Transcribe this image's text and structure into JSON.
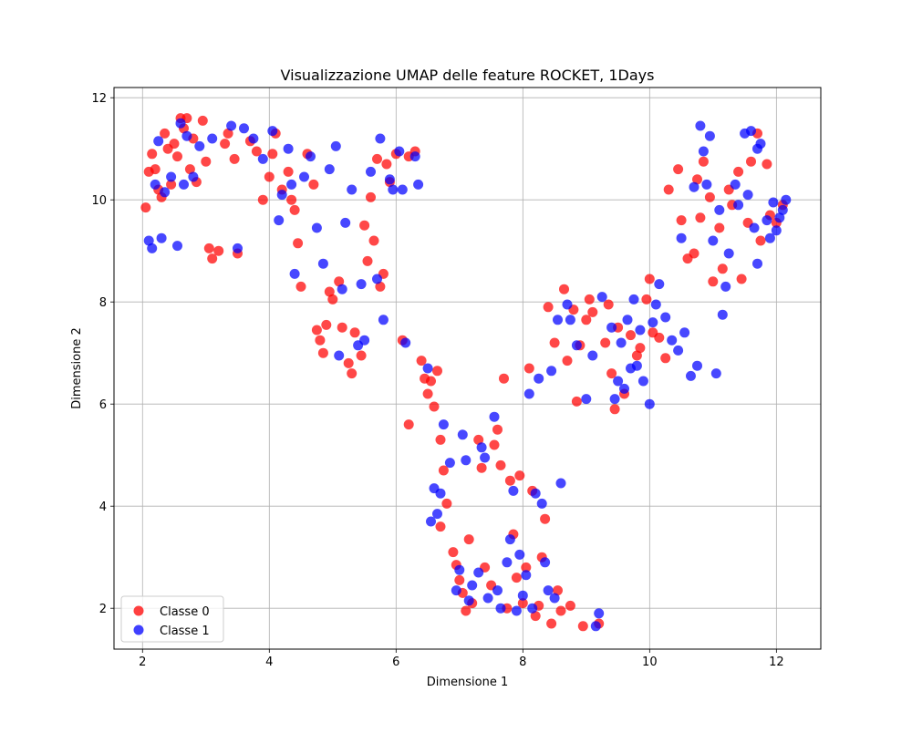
{
  "chart_data": {
    "type": "scatter",
    "title": "Visualizzazione UMAP delle feature ROCKET, 1Days",
    "xlabel": "Dimensione 1",
    "ylabel": "Dimensione 2",
    "xlim": [
      1.55,
      12.7
    ],
    "ylim": [
      1.2,
      12.2
    ],
    "xticks": [
      2,
      4,
      6,
      8,
      10,
      12
    ],
    "yticks": [
      2,
      4,
      6,
      8,
      10,
      12
    ],
    "grid": true,
    "legend_position": "lower left",
    "series": [
      {
        "name": "Classe 0",
        "color": "#ff0000",
        "points": [
          [
            2.05,
            9.85
          ],
          [
            2.1,
            10.55
          ],
          [
            2.15,
            10.9
          ],
          [
            2.2,
            10.6
          ],
          [
            2.25,
            10.2
          ],
          [
            2.3,
            10.05
          ],
          [
            2.35,
            11.3
          ],
          [
            2.4,
            11.0
          ],
          [
            2.45,
            10.3
          ],
          [
            2.5,
            11.1
          ],
          [
            2.55,
            10.85
          ],
          [
            2.6,
            11.6
          ],
          [
            2.65,
            11.4
          ],
          [
            2.7,
            11.6
          ],
          [
            2.75,
            10.6
          ],
          [
            2.8,
            11.2
          ],
          [
            2.85,
            10.35
          ],
          [
            2.95,
            11.55
          ],
          [
            3.0,
            10.75
          ],
          [
            3.05,
            9.05
          ],
          [
            3.1,
            8.85
          ],
          [
            3.2,
            9.0
          ],
          [
            3.3,
            11.1
          ],
          [
            3.35,
            11.3
          ],
          [
            3.45,
            10.8
          ],
          [
            3.5,
            8.95
          ],
          [
            3.7,
            11.15
          ],
          [
            3.8,
            10.95
          ],
          [
            3.9,
            10.0
          ],
          [
            4.0,
            10.45
          ],
          [
            4.05,
            10.9
          ],
          [
            4.1,
            11.3
          ],
          [
            4.2,
            10.2
          ],
          [
            4.3,
            10.55
          ],
          [
            4.35,
            10.0
          ],
          [
            4.4,
            9.8
          ],
          [
            4.45,
            9.15
          ],
          [
            4.5,
            8.3
          ],
          [
            4.6,
            10.9
          ],
          [
            4.7,
            10.3
          ],
          [
            4.75,
            7.45
          ],
          [
            4.8,
            7.25
          ],
          [
            4.85,
            7.0
          ],
          [
            4.9,
            7.55
          ],
          [
            4.95,
            8.2
          ],
          [
            5.0,
            8.05
          ],
          [
            5.1,
            8.4
          ],
          [
            5.15,
            7.5
          ],
          [
            5.25,
            6.8
          ],
          [
            5.3,
            6.6
          ],
          [
            5.35,
            7.4
          ],
          [
            5.45,
            6.95
          ],
          [
            5.5,
            9.5
          ],
          [
            5.55,
            8.8
          ],
          [
            5.6,
            10.05
          ],
          [
            5.65,
            9.2
          ],
          [
            5.7,
            10.8
          ],
          [
            5.75,
            8.3
          ],
          [
            5.8,
            8.55
          ],
          [
            5.85,
            10.7
          ],
          [
            5.9,
            10.35
          ],
          [
            6.0,
            10.9
          ],
          [
            6.1,
            7.25
          ],
          [
            6.2,
            10.85
          ],
          [
            6.3,
            10.95
          ],
          [
            6.4,
            6.85
          ],
          [
            6.45,
            6.5
          ],
          [
            6.5,
            6.2
          ],
          [
            6.55,
            6.45
          ],
          [
            6.6,
            5.95
          ],
          [
            6.65,
            6.65
          ],
          [
            6.2,
            5.6
          ],
          [
            6.7,
            5.3
          ],
          [
            6.75,
            4.7
          ],
          [
            6.8,
            4.05
          ],
          [
            6.7,
            3.6
          ],
          [
            6.9,
            3.1
          ],
          [
            6.95,
            2.85
          ],
          [
            7.0,
            2.55
          ],
          [
            7.05,
            2.3
          ],
          [
            7.1,
            1.95
          ],
          [
            7.15,
            3.35
          ],
          [
            7.2,
            2.1
          ],
          [
            7.3,
            5.3
          ],
          [
            7.35,
            4.75
          ],
          [
            7.4,
            2.8
          ],
          [
            7.5,
            2.45
          ],
          [
            7.55,
            5.2
          ],
          [
            7.6,
            5.5
          ],
          [
            7.65,
            4.8
          ],
          [
            7.7,
            6.5
          ],
          [
            7.75,
            2.0
          ],
          [
            7.8,
            4.5
          ],
          [
            7.85,
            3.45
          ],
          [
            7.9,
            2.6
          ],
          [
            7.95,
            4.6
          ],
          [
            8.0,
            2.1
          ],
          [
            8.05,
            2.8
          ],
          [
            8.1,
            6.7
          ],
          [
            8.15,
            4.3
          ],
          [
            8.2,
            1.85
          ],
          [
            8.25,
            2.05
          ],
          [
            8.3,
            3.0
          ],
          [
            8.35,
            3.75
          ],
          [
            8.4,
            7.9
          ],
          [
            8.45,
            1.7
          ],
          [
            8.5,
            7.2
          ],
          [
            8.55,
            2.35
          ],
          [
            8.6,
            1.95
          ],
          [
            8.65,
            8.25
          ],
          [
            8.7,
            6.85
          ],
          [
            8.75,
            2.05
          ],
          [
            8.8,
            7.85
          ],
          [
            8.85,
            6.05
          ],
          [
            8.9,
            7.15
          ],
          [
            8.95,
            1.65
          ],
          [
            9.0,
            7.65
          ],
          [
            9.05,
            8.05
          ],
          [
            9.1,
            7.8
          ],
          [
            9.2,
            1.7
          ],
          [
            9.3,
            7.2
          ],
          [
            9.35,
            7.95
          ],
          [
            9.4,
            6.6
          ],
          [
            9.45,
            5.9
          ],
          [
            9.5,
            7.5
          ],
          [
            9.6,
            6.2
          ],
          [
            9.7,
            7.35
          ],
          [
            9.8,
            6.95
          ],
          [
            9.85,
            7.1
          ],
          [
            9.95,
            8.05
          ],
          [
            10.0,
            8.45
          ],
          [
            10.05,
            7.4
          ],
          [
            10.15,
            7.3
          ],
          [
            10.25,
            6.9
          ],
          [
            10.3,
            10.2
          ],
          [
            10.45,
            10.6
          ],
          [
            10.5,
            9.6
          ],
          [
            10.6,
            8.85
          ],
          [
            10.7,
            8.95
          ],
          [
            10.75,
            10.4
          ],
          [
            10.8,
            9.65
          ],
          [
            10.85,
            10.75
          ],
          [
            10.95,
            10.05
          ],
          [
            11.0,
            8.4
          ],
          [
            11.1,
            9.45
          ],
          [
            11.15,
            8.65
          ],
          [
            11.25,
            10.2
          ],
          [
            11.3,
            9.9
          ],
          [
            11.4,
            10.55
          ],
          [
            11.45,
            8.45
          ],
          [
            11.55,
            9.55
          ],
          [
            11.6,
            10.75
          ],
          [
            11.7,
            11.3
          ],
          [
            11.75,
            9.2
          ],
          [
            11.85,
            10.7
          ],
          [
            11.9,
            9.7
          ],
          [
            12.0,
            9.55
          ],
          [
            12.1,
            9.9
          ]
        ]
      },
      {
        "name": "Classe 1",
        "color": "#0000ff",
        "points": [
          [
            2.1,
            9.2
          ],
          [
            2.15,
            9.05
          ],
          [
            2.2,
            10.3
          ],
          [
            2.25,
            11.15
          ],
          [
            2.3,
            9.25
          ],
          [
            2.35,
            10.15
          ],
          [
            2.45,
            10.45
          ],
          [
            2.55,
            9.1
          ],
          [
            2.6,
            11.5
          ],
          [
            2.65,
            10.3
          ],
          [
            2.7,
            11.25
          ],
          [
            2.8,
            10.45
          ],
          [
            2.9,
            11.05
          ],
          [
            3.1,
            11.2
          ],
          [
            3.4,
            11.45
          ],
          [
            3.5,
            9.05
          ],
          [
            3.6,
            11.4
          ],
          [
            3.75,
            11.2
          ],
          [
            3.9,
            10.8
          ],
          [
            4.05,
            11.35
          ],
          [
            4.15,
            9.6
          ],
          [
            4.2,
            10.1
          ],
          [
            4.3,
            11.0
          ],
          [
            4.35,
            10.3
          ],
          [
            4.4,
            8.55
          ],
          [
            4.55,
            10.45
          ],
          [
            4.65,
            10.85
          ],
          [
            4.75,
            9.45
          ],
          [
            4.85,
            8.75
          ],
          [
            4.95,
            10.6
          ],
          [
            5.05,
            11.05
          ],
          [
            5.1,
            6.95
          ],
          [
            5.15,
            8.25
          ],
          [
            5.2,
            9.55
          ],
          [
            5.3,
            10.2
          ],
          [
            5.4,
            7.15
          ],
          [
            5.45,
            8.35
          ],
          [
            5.5,
            7.25
          ],
          [
            5.6,
            10.55
          ],
          [
            5.7,
            8.45
          ],
          [
            5.75,
            11.2
          ],
          [
            5.8,
            7.65
          ],
          [
            5.9,
            10.4
          ],
          [
            5.95,
            10.2
          ],
          [
            6.05,
            10.95
          ],
          [
            6.1,
            10.2
          ],
          [
            6.3,
            10.85
          ],
          [
            6.35,
            10.3
          ],
          [
            6.15,
            7.2
          ],
          [
            6.5,
            6.7
          ],
          [
            6.6,
            4.35
          ],
          [
            6.65,
            3.85
          ],
          [
            6.7,
            4.25
          ],
          [
            6.55,
            3.7
          ],
          [
            6.75,
            5.6
          ],
          [
            6.85,
            4.85
          ],
          [
            6.95,
            2.35
          ],
          [
            7.0,
            2.75
          ],
          [
            7.05,
            5.4
          ],
          [
            7.1,
            4.9
          ],
          [
            7.15,
            2.15
          ],
          [
            7.2,
            2.45
          ],
          [
            7.3,
            2.7
          ],
          [
            7.35,
            5.15
          ],
          [
            7.4,
            4.95
          ],
          [
            7.45,
            2.2
          ],
          [
            7.55,
            5.75
          ],
          [
            7.6,
            2.35
          ],
          [
            7.65,
            2.0
          ],
          [
            7.75,
            2.9
          ],
          [
            7.8,
            3.35
          ],
          [
            7.85,
            4.3
          ],
          [
            7.9,
            1.95
          ],
          [
            7.95,
            3.05
          ],
          [
            8.0,
            2.25
          ],
          [
            8.05,
            2.65
          ],
          [
            8.1,
            6.2
          ],
          [
            8.15,
            2.0
          ],
          [
            8.2,
            4.25
          ],
          [
            8.25,
            6.5
          ],
          [
            8.3,
            4.05
          ],
          [
            8.35,
            2.9
          ],
          [
            8.4,
            2.35
          ],
          [
            8.45,
            6.65
          ],
          [
            8.5,
            2.2
          ],
          [
            8.55,
            7.65
          ],
          [
            8.6,
            4.45
          ],
          [
            8.7,
            7.95
          ],
          [
            8.75,
            7.65
          ],
          [
            8.85,
            7.15
          ],
          [
            9.0,
            6.1
          ],
          [
            9.1,
            6.95
          ],
          [
            9.2,
            1.9
          ],
          [
            9.15,
            1.65
          ],
          [
            9.25,
            8.1
          ],
          [
            9.4,
            7.5
          ],
          [
            9.45,
            6.1
          ],
          [
            9.5,
            6.45
          ],
          [
            9.55,
            7.2
          ],
          [
            9.6,
            6.3
          ],
          [
            9.65,
            7.65
          ],
          [
            9.7,
            6.7
          ],
          [
            9.75,
            8.05
          ],
          [
            9.8,
            6.75
          ],
          [
            9.85,
            7.45
          ],
          [
            9.9,
            6.45
          ],
          [
            10.0,
            6.0
          ],
          [
            10.05,
            7.6
          ],
          [
            10.1,
            7.95
          ],
          [
            10.15,
            8.35
          ],
          [
            10.25,
            7.7
          ],
          [
            10.35,
            7.25
          ],
          [
            10.45,
            7.05
          ],
          [
            10.5,
            9.25
          ],
          [
            10.55,
            7.4
          ],
          [
            10.65,
            6.55
          ],
          [
            10.7,
            10.25
          ],
          [
            10.75,
            6.75
          ],
          [
            10.8,
            11.45
          ],
          [
            10.85,
            10.95
          ],
          [
            10.9,
            10.3
          ],
          [
            10.95,
            11.25
          ],
          [
            11.0,
            9.2
          ],
          [
            11.05,
            6.6
          ],
          [
            11.1,
            9.8
          ],
          [
            11.15,
            7.75
          ],
          [
            11.2,
            8.3
          ],
          [
            11.25,
            8.95
          ],
          [
            11.35,
            10.3
          ],
          [
            11.4,
            9.9
          ],
          [
            11.5,
            11.3
          ],
          [
            11.55,
            10.1
          ],
          [
            11.6,
            11.35
          ],
          [
            11.65,
            9.45
          ],
          [
            11.7,
            8.75
          ],
          [
            11.75,
            11.1
          ],
          [
            11.85,
            9.6
          ],
          [
            11.9,
            9.25
          ],
          [
            11.95,
            9.95
          ],
          [
            12.0,
            9.4
          ],
          [
            12.05,
            9.65
          ],
          [
            12.15,
            10.0
          ],
          [
            12.1,
            9.8
          ],
          [
            11.7,
            11.0
          ]
        ]
      }
    ]
  }
}
